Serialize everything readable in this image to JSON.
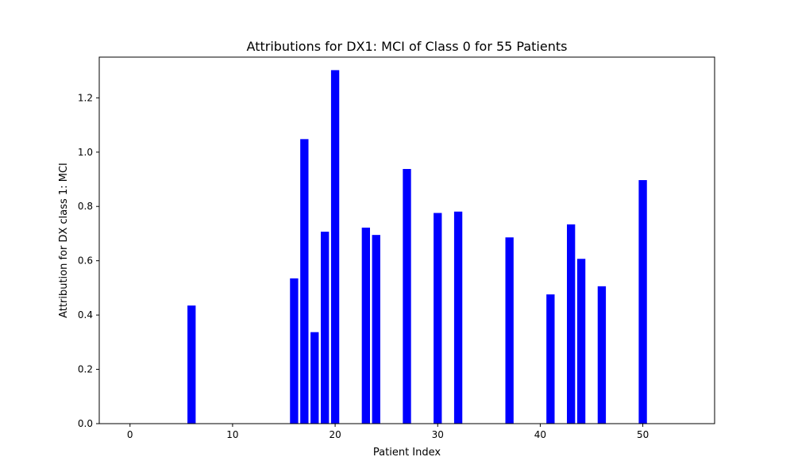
{
  "chart_data": {
    "type": "bar",
    "title": "Attributions for DX1: MCI of Class 0 for 55 Patients",
    "xlabel": "Patient Index",
    "ylabel": "Attribution for DX class 1: MCI",
    "xlim": [
      -3,
      57
    ],
    "ylim": [
      0,
      1.35
    ],
    "xticks": [
      0,
      10,
      20,
      30,
      40,
      50
    ],
    "yticks": [
      0.0,
      0.2,
      0.4,
      0.6,
      0.8,
      1.0,
      1.2
    ],
    "bar_color": "#0000ff",
    "grid": false,
    "x": [
      6,
      16,
      17,
      18,
      19,
      20,
      23,
      24,
      27,
      30,
      32,
      37,
      41,
      43,
      44,
      46,
      50
    ],
    "values": [
      0.435,
      0.535,
      1.048,
      0.337,
      0.707,
      1.302,
      0.722,
      0.695,
      0.938,
      0.776,
      0.781,
      0.686,
      0.476,
      0.734,
      0.607,
      0.506,
      0.897
    ]
  }
}
